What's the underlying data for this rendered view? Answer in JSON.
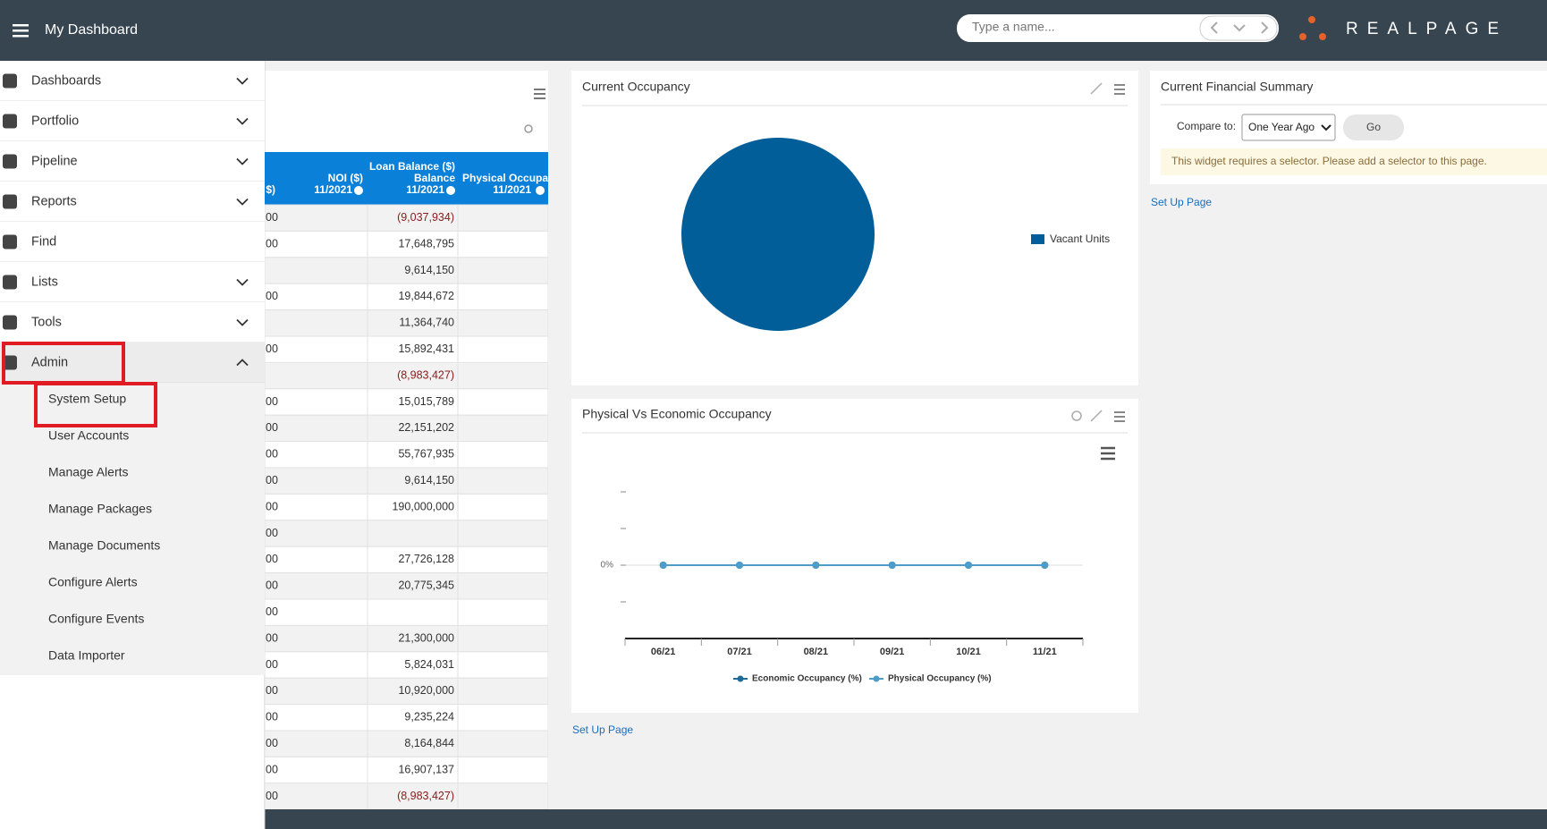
{
  "header": {
    "title": "My Dashboard",
    "search_placeholder": "Type a name...",
    "logo": "REALPAGE"
  },
  "menu": {
    "items": [
      "Dashboards",
      "Portfolio",
      "Pipeline",
      "Reports",
      "Find",
      "Lists",
      "Tools",
      "Admin"
    ],
    "admin_submenu": [
      "System Setup",
      "User Accounts",
      "Manage Alerts",
      "Manage Packages",
      "Manage Documents",
      "Configure Alerts",
      "Configure Events",
      "Data Importer"
    ]
  },
  "table": {
    "columns": [
      [
        "$)"
      ],
      [
        "NOI ($)",
        "11/2021"
      ],
      [
        "Loan Balance ($)",
        "Balance",
        "11/2021"
      ],
      [
        "Physical Occupan",
        "11/2021"
      ]
    ],
    "rows": [
      [
        "00",
        "(9,037,934)"
      ],
      [
        "00",
        "17,648,795"
      ],
      [
        null,
        "9,614,150"
      ],
      [
        "00",
        "19,844,672"
      ],
      [
        null,
        "11,364,740"
      ],
      [
        "00",
        "15,892,431"
      ],
      [
        null,
        "(8,983,427)"
      ],
      [
        "00",
        "15,015,789"
      ],
      [
        "00",
        "22,151,202"
      ],
      [
        "00",
        "55,767,935"
      ],
      [
        "00",
        "9,614,150"
      ],
      [
        "00",
        "190,000,000"
      ],
      [
        "00",
        null
      ],
      [
        "00",
        "27,726,128"
      ],
      [
        "00",
        "20,775,345"
      ],
      [
        "00",
        null
      ],
      [
        "00",
        "21,300,000"
      ],
      [
        "00",
        "5,824,031"
      ],
      [
        "00",
        "10,920,000"
      ],
      [
        "00",
        "9,235,224"
      ],
      [
        "00",
        "8,164,844"
      ],
      [
        "00",
        "16,907,137"
      ],
      [
        "00",
        "(8,983,427)"
      ]
    ]
  },
  "occupancy": {
    "type": "pie",
    "title": "Current Occupancy",
    "categories": [
      "Vacant Units"
    ],
    "values": [
      100
    ],
    "colors": [
      "#015e99"
    ]
  },
  "occupancy_trend": {
    "type": "line",
    "title": "Physical Vs Economic Occupancy",
    "categories": [
      "06/21",
      "07/21",
      "08/21",
      "09/21",
      "10/21",
      "11/21"
    ],
    "series": [
      {
        "name": "Economic Occupancy (%)",
        "color": "#1e6a98",
        "values": [
          0,
          0,
          0,
          0,
          0,
          0
        ]
      },
      {
        "name": "Physical Occupancy (%)",
        "color": "#4d9cc9",
        "values": [
          0,
          0,
          0,
          0,
          0,
          0
        ]
      }
    ],
    "ylim": [
      -2,
      3
    ],
    "yticks": [
      {
        "value": 0,
        "label": "0%"
      }
    ],
    "grid": true
  },
  "setup_link": "Set Up Page",
  "financial_summary": {
    "title": "Current Financial Summary",
    "compare_label": "Compare to:",
    "compare_value": "One Year Ago",
    "button": "Go",
    "notice": "This widget requires a selector. Please add a selector to this page.",
    "link": "Set Up Page"
  }
}
